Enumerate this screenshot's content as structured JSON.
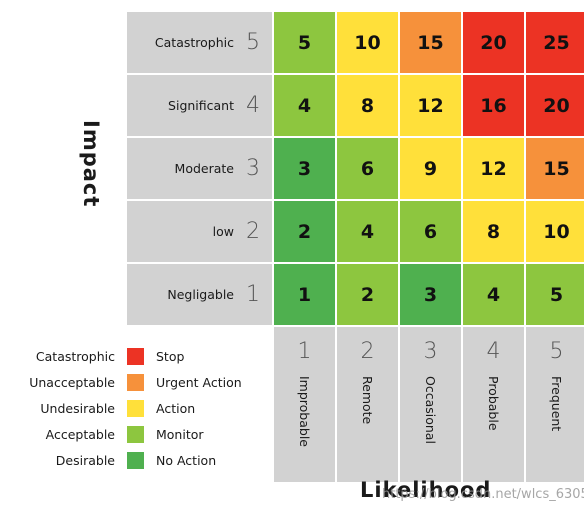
{
  "axes": {
    "y_title": "Impact",
    "x_title": "Likelihood"
  },
  "rows": [
    {
      "label": "Catastrophic",
      "num": "5"
    },
    {
      "label": "Significant",
      "num": "4"
    },
    {
      "label": "Moderate",
      "num": "3"
    },
    {
      "label": "low",
      "num": "2"
    },
    {
      "label": "Negligable",
      "num": "1"
    }
  ],
  "columns": [
    {
      "num": "1",
      "label": "Improbable"
    },
    {
      "num": "2",
      "label": "Remote"
    },
    {
      "num": "3",
      "label": "Occasional"
    },
    {
      "num": "4",
      "label": "Probable"
    },
    {
      "num": "5",
      "label": "Frequent"
    }
  ],
  "matrix": [
    [
      "5",
      "10",
      "15",
      "20",
      "25"
    ],
    [
      "4",
      "8",
      "12",
      "16",
      "20"
    ],
    [
      "3",
      "6",
      "9",
      "12",
      "15"
    ],
    [
      "2",
      "4",
      "6",
      "8",
      "10"
    ],
    [
      "1",
      "2",
      "3",
      "4",
      "5"
    ]
  ],
  "matrix_colors": [
    [
      "#8dc63f",
      "#ffe03a",
      "#f6913b",
      "#ec3324",
      "#ec3324"
    ],
    [
      "#8dc63f",
      "#ffe03a",
      "#ffe03a",
      "#ec3324",
      "#ec3324"
    ],
    [
      "#4fb04f",
      "#8dc63f",
      "#ffe03a",
      "#ffe03a",
      "#f6913b"
    ],
    [
      "#4fb04f",
      "#8dc63f",
      "#8dc63f",
      "#ffe03a",
      "#ffe03a"
    ],
    [
      "#4fb04f",
      "#8dc63f",
      "#4fb04f",
      "#8dc63f",
      "#8dc63f"
    ]
  ],
  "legend": [
    {
      "level": "Catastrophic",
      "color": "#ec3324",
      "action": "Stop"
    },
    {
      "level": "Unacceptable",
      "color": "#f6913b",
      "action": "Urgent Action"
    },
    {
      "level": "Undesirable",
      "color": "#ffe03a",
      "action": "Action"
    },
    {
      "level": "Acceptable",
      "color": "#8dc63f",
      "action": "Monitor"
    },
    {
      "level": "Desirable",
      "color": "#4fb04f",
      "action": "No Action"
    }
  ],
  "watermark": "https://blog.csdn.net/wlcs_6305"
}
